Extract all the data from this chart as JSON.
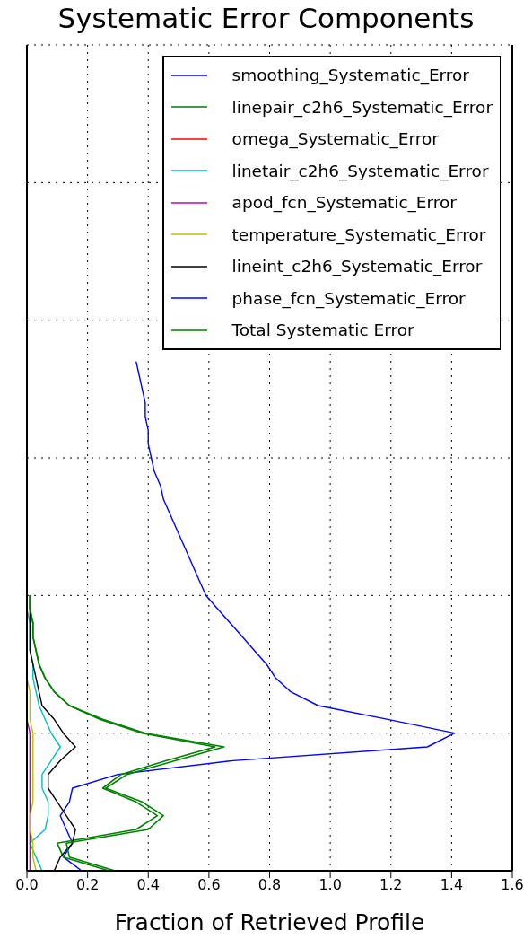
{
  "chart_data": {
    "type": "line",
    "orientation": "horizontal",
    "title": "Systematic Error Components",
    "xlabel": "Fraction of Retrieved Profile",
    "categories": [
      null,
      null,
      null,
      null,
      null,
      null,
      null,
      null,
      null,
      null,
      null,
      null,
      null,
      null,
      null,
      null,
      null,
      null,
      null,
      null,
      null,
      null,
      null,
      null,
      null,
      null,
      null,
      null,
      null,
      null,
      null,
      null,
      null,
      null,
      null,
      null,
      null,
      null,
      null,
      null,
      null,
      null,
      null,
      null,
      null,
      null,
      null,
      null,
      null,
      null,
      null,
      null,
      null,
      null,
      null,
      null,
      null,
      null,
      null,
      null,
      null
    ],
    "xlim": [
      0,
      1.6
    ],
    "xticks": [
      {
        "value": 0,
        "label": "0.0"
      },
      {
        "value": 0.2,
        "label": "0.2"
      },
      {
        "value": 0.4,
        "label": "0.4"
      },
      {
        "value": 0.6,
        "label": "0.6"
      },
      {
        "value": 0.8,
        "label": "0.8"
      },
      {
        "value": 1.0,
        "label": "1.0"
      },
      {
        "value": 1.2,
        "label": "1.2"
      },
      {
        "value": 1.4,
        "label": "1.4"
      },
      {
        "value": 1.6,
        "label": "1.6"
      }
    ],
    "tick_labels": "x",
    "grid": true,
    "legend": "top right",
    "marker": "none",
    "line_style": "solid",
    "series": [
      {
        "name": "smoothing_Systematic_Error",
        "color": "#0000ff",
        "values": [
          null,
          null,
          null,
          null,
          null,
          null,
          null,
          null,
          null,
          null,
          null,
          null,
          null,
          null,
          null,
          null,
          null,
          null,
          null,
          null,
          null,
          null,
          null,
          0.36,
          0.37,
          0.38,
          0.39,
          0.39,
          0.4,
          0.4,
          0.41,
          0.42,
          0.44,
          0.45,
          0.47,
          0.49,
          0.51,
          0.53,
          0.55,
          0.57,
          0.59,
          0.63,
          0.67,
          0.71,
          0.75,
          0.79,
          0.82,
          0.87,
          0.96,
          1.19,
          1.41,
          1.32,
          0.68,
          0.3,
          0.15,
          0.14,
          0.11,
          0.13,
          0.15,
          0.12,
          0.18
        ]
      },
      {
        "name": "linepair_c2h6_Systematic_Error",
        "color": "#008000",
        "values": [
          null,
          null,
          null,
          null,
          null,
          null,
          null,
          null,
          null,
          null,
          null,
          null,
          null,
          null,
          null,
          null,
          null,
          null,
          null,
          null,
          null,
          null,
          null,
          null,
          null,
          null,
          null,
          null,
          null,
          null,
          null,
          null,
          null,
          null,
          null,
          null,
          null,
          null,
          null,
          null,
          0.01,
          0.01,
          0.02,
          0.02,
          0.03,
          0.04,
          0.06,
          0.09,
          0.14,
          0.24,
          0.38,
          0.62,
          0.46,
          0.31,
          0.25,
          0.36,
          0.43,
          0.36,
          0.1,
          0.12,
          0.27
        ]
      },
      {
        "name": "omega_Systematic_Error",
        "color": "#ff0000",
        "values": [
          null,
          null,
          null,
          null,
          null,
          null,
          null,
          null,
          null,
          null,
          null,
          null,
          null,
          null,
          null,
          null,
          null,
          null,
          null,
          null,
          null,
          null,
          null,
          null,
          null,
          null,
          null,
          null,
          null,
          null,
          null,
          null,
          null,
          null,
          null,
          null,
          null,
          null,
          null,
          null,
          null,
          null,
          null,
          null,
          null,
          null,
          null,
          null,
          null,
          null,
          null,
          null,
          null,
          null,
          null,
          null,
          null,
          null,
          null,
          null,
          null
        ]
      },
      {
        "name": "linetair_c2h6_Systematic_Error",
        "color": "#00bfbf",
        "values": [
          null,
          null,
          null,
          null,
          null,
          null,
          null,
          null,
          null,
          null,
          null,
          null,
          null,
          null,
          null,
          null,
          null,
          null,
          null,
          null,
          null,
          null,
          null,
          null,
          null,
          null,
          null,
          null,
          null,
          null,
          null,
          null,
          null,
          null,
          null,
          null,
          null,
          null,
          null,
          null,
          null,
          0,
          0.01,
          0.01,
          0.01,
          0.02,
          0.02,
          0.03,
          0.04,
          0.06,
          0.08,
          0.11,
          0.08,
          0.05,
          0.05,
          0.07,
          0.07,
          0.06,
          0.01,
          0.03,
          0.05
        ]
      },
      {
        "name": "apod_fcn_Systematic_Error",
        "color": "#bf00bf",
        "values": [
          null,
          null,
          null,
          null,
          null,
          null,
          null,
          null,
          null,
          null,
          null,
          null,
          null,
          null,
          null,
          null,
          null,
          null,
          null,
          null,
          null,
          null,
          null,
          null,
          null,
          null,
          null,
          null,
          null,
          null,
          null,
          null,
          null,
          null,
          null,
          null,
          null,
          null,
          null,
          null,
          null,
          null,
          null,
          null,
          null,
          null,
          null,
          null,
          null,
          0,
          0.01,
          0.01,
          0.01,
          0.01,
          0.01,
          0.01,
          0.01,
          0.01,
          0.01,
          0.01,
          0.01
        ]
      },
      {
        "name": "temperature_Systematic_Error",
        "color": "#bfbf00",
        "values": [
          null,
          null,
          null,
          null,
          null,
          null,
          null,
          null,
          null,
          null,
          null,
          null,
          null,
          null,
          null,
          null,
          null,
          null,
          null,
          null,
          null,
          null,
          null,
          null,
          null,
          null,
          null,
          null,
          null,
          null,
          null,
          null,
          null,
          null,
          null,
          null,
          null,
          null,
          null,
          null,
          null,
          null,
          null,
          null,
          null,
          null,
          0,
          0.01,
          0.01,
          0.01,
          0.02,
          0.02,
          0.02,
          0.02,
          0.02,
          0.02,
          0.01,
          0.01,
          0.02,
          0.02,
          0.03
        ]
      },
      {
        "name": "lineint_c2h6_Systematic_Error",
        "color": "#000000",
        "values": [
          null,
          null,
          null,
          null,
          null,
          null,
          null,
          null,
          null,
          null,
          null,
          null,
          null,
          null,
          null,
          null,
          null,
          null,
          null,
          null,
          null,
          null,
          null,
          null,
          null,
          null,
          null,
          null,
          null,
          null,
          null,
          null,
          null,
          null,
          null,
          null,
          null,
          null,
          null,
          null,
          0.01,
          0.01,
          0.01,
          0.01,
          0.01,
          0.02,
          0.03,
          0.04,
          0.05,
          0.09,
          0.12,
          0.16,
          0.11,
          0.07,
          0.07,
          0.1,
          0.13,
          0.16,
          0.15,
          0.11,
          0.09
        ]
      },
      {
        "name": "phase_fcn_Systematic_Error",
        "color": "#0000ff",
        "values": [
          null,
          null,
          null,
          null,
          null,
          null,
          null,
          null,
          null,
          null,
          null,
          null,
          null,
          null,
          null,
          null,
          null,
          null,
          null,
          null,
          null,
          null,
          null,
          null,
          null,
          null,
          null,
          null,
          null,
          null,
          null,
          null,
          null,
          null,
          null,
          null,
          null,
          null,
          null,
          null,
          null,
          null,
          null,
          null,
          null,
          null,
          null,
          null,
          null,
          null,
          null,
          null,
          null,
          null,
          null,
          null,
          null,
          null,
          null,
          null,
          null
        ]
      },
      {
        "name": "Total Systematic Error",
        "color": "#008000",
        "values": [
          null,
          null,
          null,
          null,
          null,
          null,
          null,
          null,
          null,
          null,
          null,
          null,
          null,
          null,
          null,
          null,
          null,
          null,
          null,
          null,
          null,
          null,
          null,
          null,
          null,
          null,
          null,
          null,
          null,
          null,
          null,
          null,
          null,
          null,
          null,
          null,
          null,
          null,
          null,
          null,
          0.01,
          0.01,
          0.02,
          0.02,
          0.03,
          0.04,
          0.06,
          0.09,
          0.14,
          0.25,
          0.39,
          0.65,
          0.49,
          0.33,
          0.26,
          0.38,
          0.45,
          0.4,
          0.13,
          0.14,
          0.29
        ]
      }
    ]
  }
}
